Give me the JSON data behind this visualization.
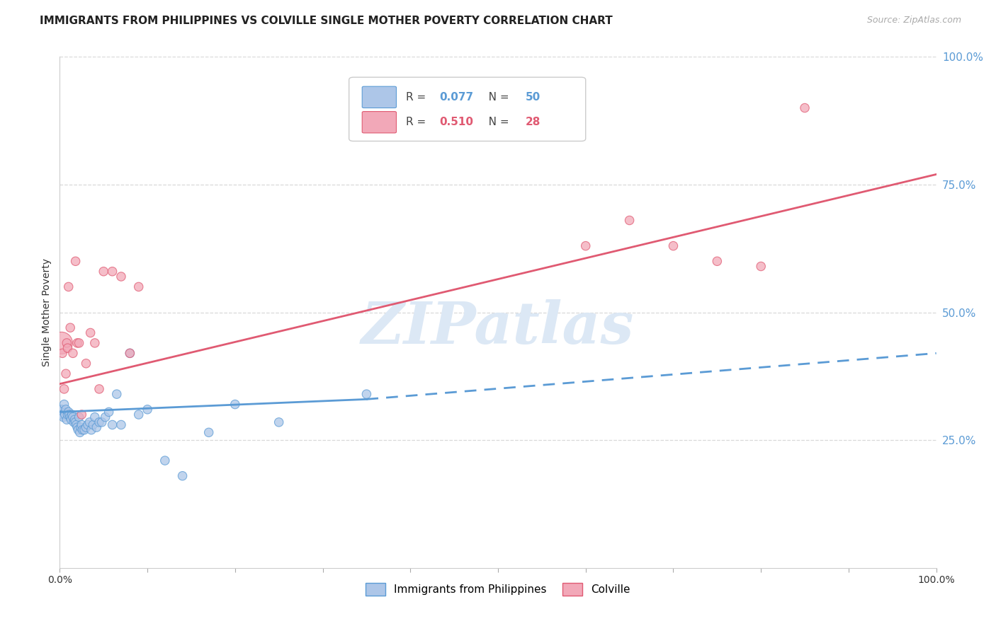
{
  "title": "IMMIGRANTS FROM PHILIPPINES VS COLVILLE SINGLE MOTHER POVERTY CORRELATION CHART",
  "source": "Source: ZipAtlas.com",
  "ylabel": "Single Mother Poverty",
  "yticks": [
    0.0,
    0.25,
    0.5,
    0.75,
    1.0
  ],
  "ytick_labels": [
    "",
    "25.0%",
    "50.0%",
    "75.0%",
    "100.0%"
  ],
  "xtick_labels": [
    "0.0%",
    "",
    "",
    "",
    "",
    "",
    "",
    "",
    "",
    "",
    "100.0%"
  ],
  "xticks": [
    0.0,
    0.1,
    0.2,
    0.3,
    0.4,
    0.5,
    0.6,
    0.7,
    0.8,
    0.9,
    1.0
  ],
  "blue_scatter": {
    "x": [
      0.001,
      0.002,
      0.003,
      0.004,
      0.005,
      0.006,
      0.007,
      0.008,
      0.009,
      0.01,
      0.011,
      0.012,
      0.013,
      0.014,
      0.015,
      0.016,
      0.017,
      0.018,
      0.019,
      0.02,
      0.021,
      0.022,
      0.023,
      0.024,
      0.025,
      0.026,
      0.028,
      0.03,
      0.032,
      0.034,
      0.036,
      0.038,
      0.04,
      0.042,
      0.045,
      0.048,
      0.052,
      0.056,
      0.06,
      0.065,
      0.07,
      0.08,
      0.09,
      0.1,
      0.12,
      0.14,
      0.17,
      0.2,
      0.25,
      0.35
    ],
    "y": [
      0.305,
      0.31,
      0.3,
      0.295,
      0.32,
      0.3,
      0.31,
      0.29,
      0.3,
      0.305,
      0.3,
      0.295,
      0.29,
      0.3,
      0.295,
      0.285,
      0.29,
      0.285,
      0.28,
      0.275,
      0.27,
      0.295,
      0.265,
      0.275,
      0.28,
      0.27,
      0.27,
      0.275,
      0.28,
      0.285,
      0.27,
      0.28,
      0.295,
      0.275,
      0.285,
      0.285,
      0.295,
      0.305,
      0.28,
      0.34,
      0.28,
      0.42,
      0.3,
      0.31,
      0.21,
      0.18,
      0.265,
      0.32,
      0.285,
      0.34
    ],
    "sizes": [
      200,
      80,
      80,
      80,
      80,
      80,
      80,
      80,
      80,
      80,
      80,
      80,
      80,
      80,
      80,
      80,
      80,
      80,
      80,
      80,
      80,
      80,
      80,
      80,
      80,
      80,
      80,
      80,
      80,
      80,
      80,
      80,
      80,
      80,
      80,
      80,
      80,
      80,
      80,
      80,
      80,
      80,
      80,
      80,
      80,
      80,
      80,
      80,
      80,
      80
    ]
  },
  "pink_scatter": {
    "x": [
      0.002,
      0.003,
      0.005,
      0.007,
      0.008,
      0.009,
      0.01,
      0.012,
      0.015,
      0.018,
      0.02,
      0.022,
      0.025,
      0.03,
      0.035,
      0.04,
      0.045,
      0.05,
      0.06,
      0.07,
      0.08,
      0.09,
      0.6,
      0.65,
      0.7,
      0.75,
      0.8,
      0.85
    ],
    "y": [
      0.44,
      0.42,
      0.35,
      0.38,
      0.44,
      0.43,
      0.55,
      0.47,
      0.42,
      0.6,
      0.44,
      0.44,
      0.3,
      0.4,
      0.46,
      0.44,
      0.35,
      0.58,
      0.58,
      0.57,
      0.42,
      0.55,
      0.63,
      0.68,
      0.63,
      0.6,
      0.59,
      0.9
    ],
    "sizes": [
      500,
      80,
      80,
      80,
      80,
      80,
      80,
      80,
      80,
      80,
      80,
      80,
      80,
      80,
      80,
      80,
      80,
      80,
      80,
      80,
      80,
      80,
      80,
      80,
      80,
      80,
      80,
      80
    ]
  },
  "blue_solid_line": {
    "x": [
      0.0,
      0.35
    ],
    "y": [
      0.305,
      0.33
    ]
  },
  "blue_dashed_line": {
    "x": [
      0.35,
      1.0
    ],
    "y": [
      0.33,
      0.42
    ]
  },
  "pink_line": {
    "x": [
      0.0,
      1.0
    ],
    "y": [
      0.36,
      0.77
    ]
  },
  "blue_color": "#5b9bd5",
  "pink_color": "#e05a72",
  "scatter_blue_color": "#adc6e8",
  "scatter_pink_color": "#f2a8b8",
  "background_color": "#ffffff",
  "grid_color": "#d8d8d8",
  "title_fontsize": 11,
  "watermark_text": "ZIPatlas",
  "watermark_color": "#dce8f5",
  "watermark_fontsize": 60,
  "legend_R1": "0.077",
  "legend_N1": "50",
  "legend_R2": "0.510",
  "legend_N2": "28",
  "legend_color1": "#5b9bd5",
  "legend_color2": "#e05a72",
  "bottom_legend_label1": "Immigrants from Philippines",
  "bottom_legend_label2": "Colville"
}
